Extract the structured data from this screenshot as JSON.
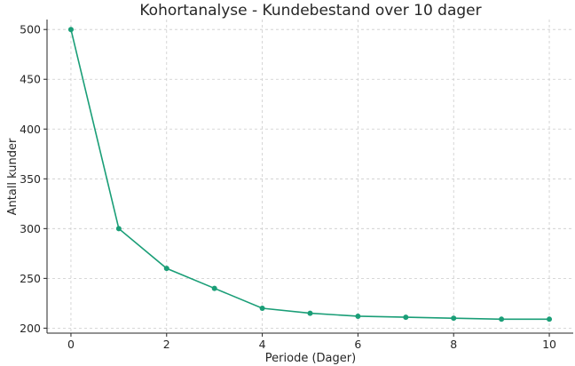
{
  "chart_data": {
    "type": "line",
    "title": "Kohortanalyse - Kundebestand over 10 dager",
    "xlabel": "Periode (Dager)",
    "ylabel": "Antall kunder",
    "x": [
      0,
      1,
      2,
      3,
      4,
      5,
      6,
      7,
      8,
      9,
      10
    ],
    "series": [
      {
        "values": [
          500,
          300,
          260,
          240,
          220,
          215,
          212,
          211,
          210,
          209,
          209
        ]
      }
    ],
    "xlim": [
      -0.5,
      10.5
    ],
    "ylim": [
      195,
      510
    ],
    "xticks": [
      0,
      2,
      4,
      6,
      8,
      10
    ],
    "yticks": [
      200,
      250,
      300,
      350,
      400,
      450,
      500
    ],
    "grid": true,
    "legend": "none",
    "color": "#1a9e77"
  }
}
